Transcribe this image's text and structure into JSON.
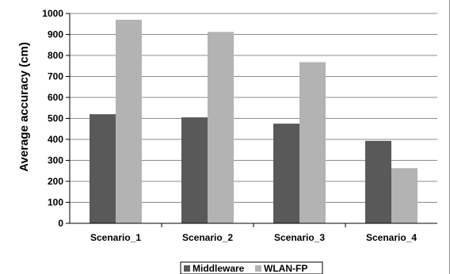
{
  "chart_data": {
    "type": "bar",
    "title": "",
    "xlabel": "",
    "ylabel": "Average accuracy (cm)",
    "ylim": [
      0,
      1000
    ],
    "yticks": [
      0,
      100,
      200,
      300,
      400,
      500,
      600,
      700,
      800,
      900,
      1000
    ],
    "categories": [
      "Scenario_1",
      "Scenario_2",
      "Scenario_3",
      "Scenario_4"
    ],
    "series": [
      {
        "name": "Middleware",
        "values": [
          520,
          505,
          475,
          393
        ],
        "color": "#595959"
      },
      {
        "name": "WLAN-FP",
        "values": [
          970,
          912,
          768,
          263
        ],
        "color": "#b3b3b3"
      }
    ],
    "grid": "horizontal",
    "legend_position": "bottom"
  }
}
